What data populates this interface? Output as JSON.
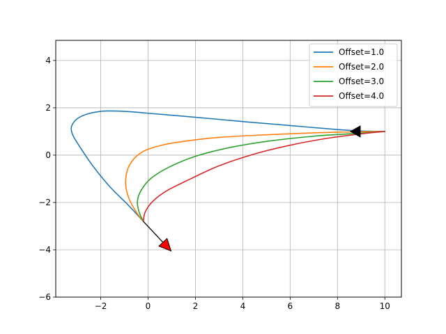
{
  "chart_data": {
    "type": "line",
    "title": "",
    "xlabel": "",
    "ylabel": "",
    "xlim": [
      -3.9,
      10.7
    ],
    "ylim": [
      -6,
      4.85
    ],
    "x_ticks": [
      -2,
      0,
      2,
      4,
      6,
      8,
      10
    ],
    "y_ticks": [
      -6,
      -4,
      -2,
      0,
      2,
      4
    ],
    "grid": true,
    "legend_position": "top-right",
    "series": [
      {
        "name": "Offset=1.0",
        "color": "#1f77b4",
        "points": [
          [
            -0.2,
            -2.8
          ],
          [
            -0.8,
            -2.15
          ],
          [
            -1.6,
            -1.35
          ],
          [
            -2.3,
            -0.5
          ],
          [
            -2.85,
            0.3
          ],
          [
            -3.2,
            0.9
          ],
          [
            -3.2,
            1.3
          ],
          [
            -2.8,
            1.65
          ],
          [
            -2.0,
            1.85
          ],
          [
            -1.0,
            1.85
          ],
          [
            0.0,
            1.77
          ],
          [
            2.0,
            1.6
          ],
          [
            4.0,
            1.42
          ],
          [
            6.0,
            1.25
          ],
          [
            8.0,
            1.08
          ],
          [
            9.0,
            1.02
          ],
          [
            10.0,
            1.0
          ]
        ]
      },
      {
        "name": "Offset=2.0",
        "color": "#ff7f0e",
        "points": [
          [
            -0.2,
            -2.8
          ],
          [
            -0.5,
            -2.4
          ],
          [
            -0.8,
            -1.85
          ],
          [
            -0.95,
            -1.2
          ],
          [
            -0.8,
            -0.45
          ],
          [
            -0.3,
            0.1
          ],
          [
            0.5,
            0.4
          ],
          [
            1.5,
            0.58
          ],
          [
            3.0,
            0.75
          ],
          [
            5.0,
            0.86
          ],
          [
            7.0,
            0.94
          ],
          [
            8.5,
            0.98
          ],
          [
            10.0,
            1.0
          ]
        ]
      },
      {
        "name": "Offset=3.0",
        "color": "#2ca02c",
        "points": [
          [
            -0.2,
            -2.8
          ],
          [
            -0.38,
            -2.4
          ],
          [
            -0.45,
            -1.95
          ],
          [
            -0.3,
            -1.5
          ],
          [
            0.1,
            -1.0
          ],
          [
            0.9,
            -0.5
          ],
          [
            2.0,
            -0.05
          ],
          [
            3.5,
            0.33
          ],
          [
            5.0,
            0.58
          ],
          [
            7.0,
            0.8
          ],
          [
            9.0,
            0.93
          ],
          [
            10.0,
            1.0
          ]
        ]
      },
      {
        "name": "Offset=4.0",
        "color": "#d62728",
        "points": [
          [
            -0.2,
            -2.8
          ],
          [
            -0.12,
            -2.4
          ],
          [
            0.2,
            -1.95
          ],
          [
            0.8,
            -1.5
          ],
          [
            1.8,
            -1.0
          ],
          [
            3.0,
            -0.45
          ],
          [
            4.5,
            0.05
          ],
          [
            6.0,
            0.42
          ],
          [
            7.5,
            0.7
          ],
          [
            9.0,
            0.9
          ],
          [
            10.0,
            1.0
          ]
        ]
      }
    ],
    "annotations": [
      {
        "type": "arrow",
        "color": "#000000",
        "from": [
          -0.2,
          -2.8
        ],
        "to": [
          0.97,
          -4.05
        ],
        "head_color": "#ff0000"
      },
      {
        "type": "arrow-head",
        "color": "#000000",
        "at": [
          8.55,
          1.0
        ],
        "pointing": "left",
        "head_color": "#000000"
      }
    ]
  }
}
